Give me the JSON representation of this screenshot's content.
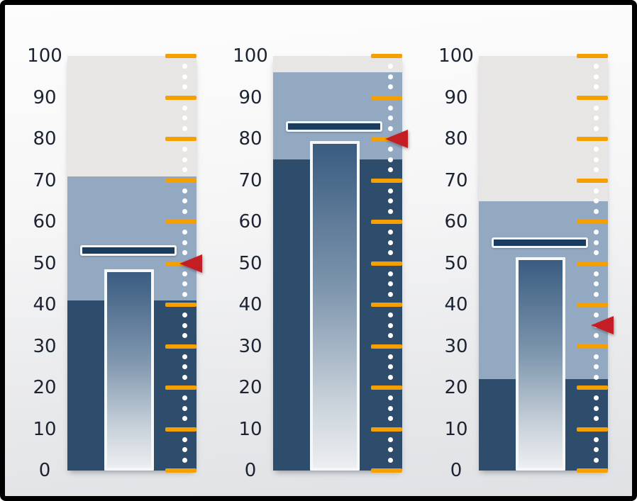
{
  "panel": {
    "border_color": "#000000",
    "background_top": "#FDFDFD",
    "background_bottom": "#DFE1E4"
  },
  "style": {
    "axis_text_color": "#1C2433",
    "tick_color": "#F5A000",
    "dot_color": "#FFFFFF",
    "bar_border_color": "#F6F7F9",
    "bar_gradient_top": "#3A5C80",
    "bar_gradient_mid": "#7E96AE",
    "bar_gradient_bottom": "#ECEEF0",
    "target_fill_color": "#1A3C5F",
    "target_border_color": "#F4F6F8",
    "marker_color": "#C41E24",
    "range_low_color": "#2E4C6B",
    "range_mid_color": "#93A9C1",
    "range_high_color": "#E7E6E4"
  },
  "chart_data": [
    {
      "type": "bullet",
      "orientation": "vertical",
      "axis": {
        "min": 0,
        "max": 100,
        "tick_interval": 10,
        "tick_labels": [
          "0",
          "10",
          "20",
          "30",
          "40",
          "50",
          "60",
          "70",
          "80",
          "90",
          "100"
        ]
      },
      "ranges": [
        {
          "from": 0,
          "to": 41,
          "level": "low",
          "color": "#2E4C6B"
        },
        {
          "from": 41,
          "to": 71,
          "level": "mid",
          "color": "#93A9C1"
        },
        {
          "from": 71,
          "to": 100,
          "level": "high",
          "color": "#E7E6E4"
        }
      ],
      "measure": 48.5,
      "target": 53,
      "marker": 50
    },
    {
      "type": "bullet",
      "orientation": "vertical",
      "axis": {
        "min": 0,
        "max": 100,
        "tick_interval": 10,
        "tick_labels": [
          "0",
          "10",
          "20",
          "30",
          "40",
          "50",
          "60",
          "70",
          "80",
          "90",
          "100"
        ]
      },
      "ranges": [
        {
          "from": 0,
          "to": 75,
          "level": "low",
          "color": "#2E4C6B"
        },
        {
          "from": 75,
          "to": 96,
          "level": "mid",
          "color": "#93A9C1"
        },
        {
          "from": 96,
          "to": 100,
          "level": "high",
          "color": "#E7E6E4"
        }
      ],
      "measure": 79.5,
      "target": 83,
      "marker": 80
    },
    {
      "type": "bullet",
      "orientation": "vertical",
      "axis": {
        "min": 0,
        "max": 100,
        "tick_interval": 10,
        "tick_labels": [
          "0",
          "10",
          "20",
          "30",
          "40",
          "50",
          "60",
          "70",
          "80",
          "90",
          "100"
        ]
      },
      "ranges": [
        {
          "from": 0,
          "to": 22,
          "level": "low",
          "color": "#2E4C6B"
        },
        {
          "from": 22,
          "to": 65,
          "level": "mid",
          "color": "#93A9C1"
        },
        {
          "from": 65,
          "to": 100,
          "level": "high",
          "color": "#E7E6E4"
        }
      ],
      "measure": 51.5,
      "target": 55,
      "marker": 35
    }
  ]
}
